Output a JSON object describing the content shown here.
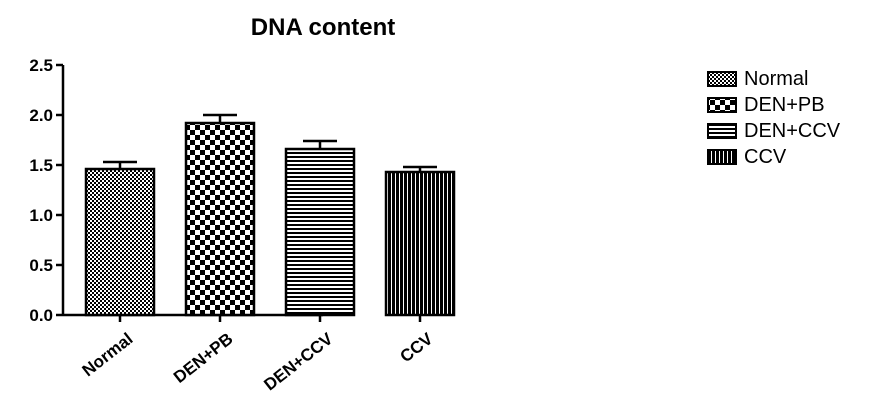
{
  "chart_data": {
    "type": "bar",
    "title": "DNA content",
    "xlabel": "",
    "ylabel": "",
    "categories": [
      "Normal",
      "DEN+PB",
      "DEN+CCV",
      "CCV"
    ],
    "values": [
      1.46,
      1.92,
      1.66,
      1.43
    ],
    "errors": [
      0.07,
      0.08,
      0.08,
      0.05
    ],
    "ylim": [
      0,
      2.5
    ],
    "yticks": [
      "0.0",
      "0.5",
      "1.0",
      "1.5",
      "2.0",
      "2.5"
    ],
    "ytick_values": [
      0,
      0.5,
      1.0,
      1.5,
      2.0,
      2.5
    ],
    "legend": {
      "position": "right",
      "entries": [
        "Normal",
        "DEN+PB",
        "DEN+CCV",
        "CCV"
      ]
    },
    "patterns": [
      "fine-check",
      "coarse-check",
      "horizontal-lines",
      "vertical-lines"
    ],
    "colors": {
      "fill": "#000000",
      "background": "#ffffff"
    },
    "grid": false
  }
}
